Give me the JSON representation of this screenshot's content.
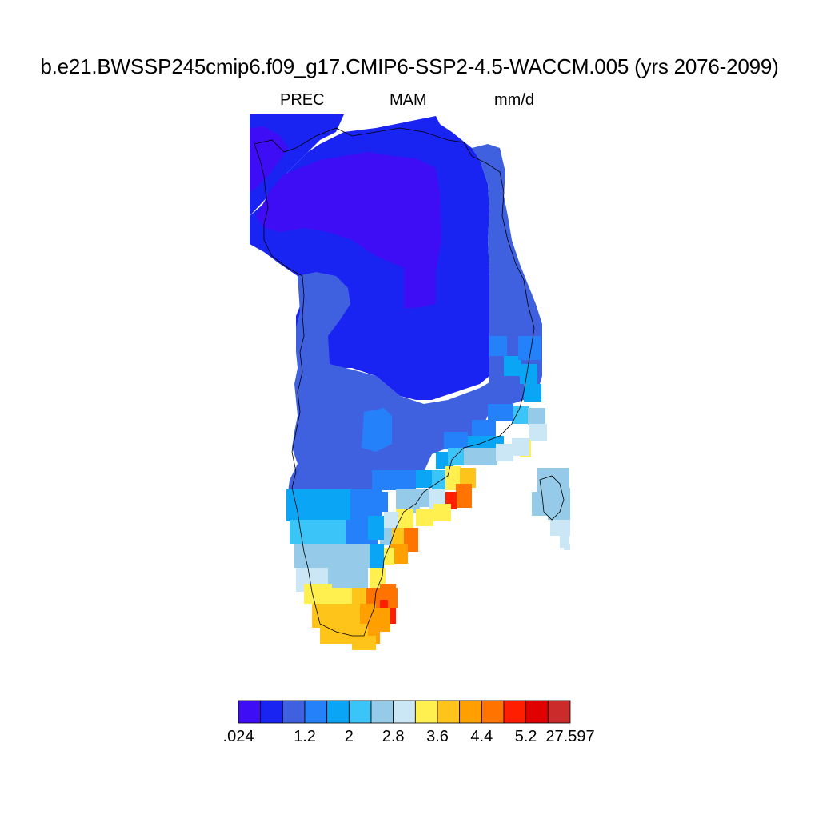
{
  "header": {
    "title": "b.e21.BWSSP245cmip6.f09_g17.CMIP6-SSP2-4.5-WACCM.005 (yrs 2076-2099)",
    "variable": "PREC",
    "season": "MAM",
    "units": "mm/d"
  },
  "colorbar": {
    "colors": [
      "#3f0df5",
      "#1a24f2",
      "#3f61e0",
      "#2581fa",
      "#0aa6f5",
      "#3bc4f7",
      "#95cbe8",
      "#cbe6f5",
      "#fff050",
      "#ffc419",
      "#ffa000",
      "#ff7300",
      "#ff1e00",
      "#e00000",
      "#cc2b2b"
    ],
    "labels": [
      {
        "text": ".024",
        "boundary": 0
      },
      {
        "text": "1.2",
        "boundary": 3
      },
      {
        "text": "2",
        "boundary": 5
      },
      {
        "text": "2.8",
        "boundary": 7
      },
      {
        "text": "3.6",
        "boundary": 9
      },
      {
        "text": "4.4",
        "boundary": 11
      },
      {
        "text": "5.2",
        "boundary": 13
      },
      {
        "text": "27.597",
        "boundary": 15
      }
    ]
  },
  "map_data": {
    "region": "Greenland",
    "fields": [
      {
        "name": "far north interior",
        "level": 0,
        "color_index": 0
      },
      {
        "name": "northern band",
        "level": 1,
        "color_index": 1
      },
      {
        "name": "central interior",
        "level": 1,
        "color_index": 1
      },
      {
        "name": "western and southern interior",
        "level": 2,
        "color_index": 2
      },
      {
        "name": "east coast north",
        "level": 2,
        "color_index": 2
      },
      {
        "name": "south interior",
        "level": 3,
        "color_index": 3
      },
      {
        "name": "southeast coast",
        "level": 8,
        "color_index": 8
      },
      {
        "name": "southeast tip",
        "level": 13,
        "color_index": 13
      },
      {
        "name": "iceland",
        "level": 6,
        "color_index": 6
      }
    ]
  }
}
